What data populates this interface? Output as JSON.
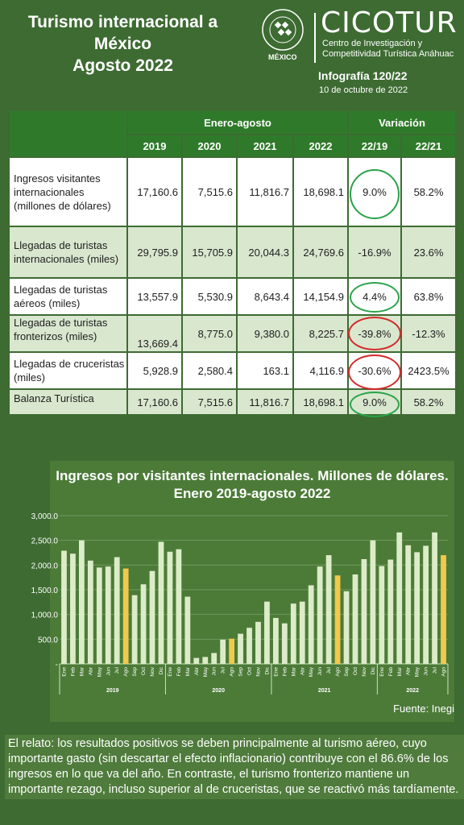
{
  "header": {
    "title_lines": [
      "Turismo internacional a",
      "México",
      "Agosto 2022"
    ],
    "university_country": "MÉXICO",
    "brand": "CICOTUR",
    "brand_sub1": "Centro de Investigación y",
    "brand_sub2": "Competitividad Turística Anáhuac",
    "infografia": "Infografía 120/22",
    "date": "10 de octubre de 2022"
  },
  "table": {
    "group_period": "Enero-agosto",
    "group_variation": "Variación",
    "years": [
      "2019",
      "2020",
      "2021",
      "2022"
    ],
    "variations": [
      "22/19",
      "22/21"
    ],
    "rows": [
      {
        "label": "Ingresos visitantes internacionales (millones de dólares)",
        "v2019": "17,160.6",
        "v2020": "7,515.6",
        "v2021": "11,816.7",
        "v2022": "18,698.1",
        "var1": "9.0%",
        "var2": "58.2%"
      },
      {
        "label": "Llegadas de turistas internacionales (miles)",
        "v2019": "29,795.9",
        "v2020": "15,705.9",
        "v2021": "20,044.3",
        "v2022": "24,769.6",
        "var1": "-16.9%",
        "var2": "23.6%"
      },
      {
        "label": "Llegadas de turistas aéreos (miles)",
        "v2019": "13,557.9",
        "v2020": "5,530.9",
        "v2021": "8,643.4",
        "v2022": "14,154.9",
        "var1": "4.4%",
        "var2": "63.8%"
      },
      {
        "label": "Llegadas de turistas fronterizos (miles)",
        "v2019": "13,669.4",
        "v2020": "8,775.0",
        "v2021": "9,380.0",
        "v2022": "8,225.7",
        "var1": "-39.8%",
        "var2": "-12.3%"
      },
      {
        "label": "Llegadas de cruceristas (miles)",
        "v2019": "5,928.9",
        "v2020": "2,580.4",
        "v2021": "163.1",
        "v2022": "4,116.9",
        "var1": "-30.6%",
        "var2": "2423.5%"
      },
      {
        "label": "Balanza Turística",
        "v2019": "17,160.6",
        "v2020": "7,515.6",
        "v2021": "11,816.7",
        "v2022": "18,698.1",
        "var1": "9.0%",
        "var2": "58.2%"
      }
    ]
  },
  "chart_data": {
    "type": "bar",
    "title": "Ingresos por visitantes internacionales. Millones de dólares. Enero 2019-agosto 2022",
    "ylim": [
      0,
      3000
    ],
    "yticks": [
      "-",
      "500.0",
      "1,000.0",
      "1,500.0",
      "2,000.0",
      "2,500.0",
      "3,000.0"
    ],
    "grid": true,
    "colors": {
      "normal": "#dcecc8",
      "highlight": "#f2c94c"
    },
    "years": [
      "2019",
      "2020",
      "2021",
      "2022"
    ],
    "categories": [
      "Ene",
      "Feb",
      "Mar",
      "Abr",
      "May",
      "Jun",
      "Jul",
      "Ago",
      "Sep",
      "Oct",
      "Nov",
      "Dic",
      "Ene",
      "Feb",
      "Mar",
      "Abr",
      "May",
      "Jun",
      "Jul",
      "Ago",
      "Sep",
      "Oct",
      "Nov",
      "Dic",
      "Ene",
      "Feb",
      "Mar",
      "Abr",
      "May",
      "Jun",
      "Jul",
      "Ago",
      "Sep",
      "Oct",
      "Nov",
      "Dic",
      "Ene",
      "Feb",
      "Mar",
      "Abr",
      "May",
      "Jun",
      "Jul",
      "Ago"
    ],
    "values": [
      2290,
      2230,
      2500,
      2090,
      1950,
      1970,
      2160,
      1930,
      1390,
      1610,
      1880,
      2470,
      2270,
      2320,
      1360,
      120,
      140,
      220,
      490,
      510,
      610,
      730,
      850,
      1260,
      930,
      820,
      1220,
      1260,
      1590,
      1970,
      2200,
      1790,
      1470,
      1810,
      2120,
      2500,
      1980,
      2110,
      2660,
      2400,
      2260,
      2390,
      2660,
      2200
    ],
    "highlight_indices": [
      7,
      19,
      31,
      43
    ]
  },
  "source": "Fuente: Inegi",
  "relato": "El relato: los resultados positivos se deben principalmente al turismo aéreo, cuyo importante gasto (sin descartar el efecto inflacionario) contribuye con el 86.6% de los ingresos en lo que va del año. En contraste, el turismo fronterizo mantiene un importante rezago, incluso superior al de cruceristas, que se reactivó más tardíamente."
}
